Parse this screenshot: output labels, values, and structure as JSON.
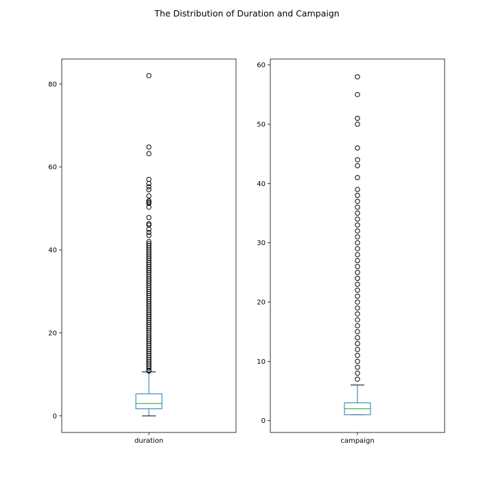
{
  "title": "The Distribution of Duration and Campaign",
  "chart_data": [
    {
      "type": "box",
      "category": "duration",
      "ylim": [
        -4,
        86
      ],
      "yticks": [
        0,
        20,
        40,
        60,
        80
      ],
      "box": {
        "whisker_low": 0,
        "q1": 1.7,
        "median": 3.0,
        "q3": 5.3,
        "whisker_high": 10.6
      },
      "outliers": [
        82,
        64.8,
        63.2,
        57,
        56,
        55.2,
        54.5,
        53,
        51.8,
        51.5,
        51.2,
        50.3,
        47.8,
        46.3,
        46,
        45,
        44.2,
        43.5,
        42,
        41.5,
        41,
        40.5,
        40,
        39.5,
        39,
        38.5,
        38,
        37.5,
        37,
        36.5,
        36,
        35.5,
        35,
        34.5,
        34,
        33.5,
        33,
        32.5,
        32,
        31.5,
        31,
        30.5,
        30,
        29.5,
        29,
        28.5,
        28,
        27.5,
        27,
        26.5,
        26,
        25.5,
        25,
        24.5,
        24,
        23.5,
        23,
        22.5,
        22,
        21.5,
        21,
        20.5,
        20,
        19.5,
        19,
        18.5,
        18,
        17.5,
        17,
        16.5,
        16,
        15.5,
        15,
        14.5,
        14,
        13.5,
        13,
        12.5,
        12,
        11.5,
        11,
        10.8
      ]
    },
    {
      "type": "box",
      "category": "campaign",
      "ylim": [
        -2,
        61
      ],
      "yticks": [
        0,
        10,
        20,
        30,
        40,
        50,
        60
      ],
      "box": {
        "whisker_low": 1,
        "q1": 1,
        "median": 2,
        "q3": 3,
        "whisker_high": 6
      },
      "outliers": [
        58,
        55,
        51,
        50,
        46,
        44,
        43,
        41,
        39,
        38,
        37,
        36,
        35,
        34,
        33,
        32,
        31,
        30,
        29,
        28,
        27,
        26,
        25,
        24,
        23,
        22,
        21,
        20,
        19,
        18,
        17,
        16,
        15,
        14,
        13,
        12,
        11,
        10,
        9,
        8,
        7
      ]
    }
  ],
  "colors": {
    "box": "#1f77b4",
    "median": "#2ca02c",
    "whisker": "#1f77b4",
    "cap": "#000000",
    "outlier": "#000000",
    "axis": "#000000",
    "text": "#000000"
  }
}
